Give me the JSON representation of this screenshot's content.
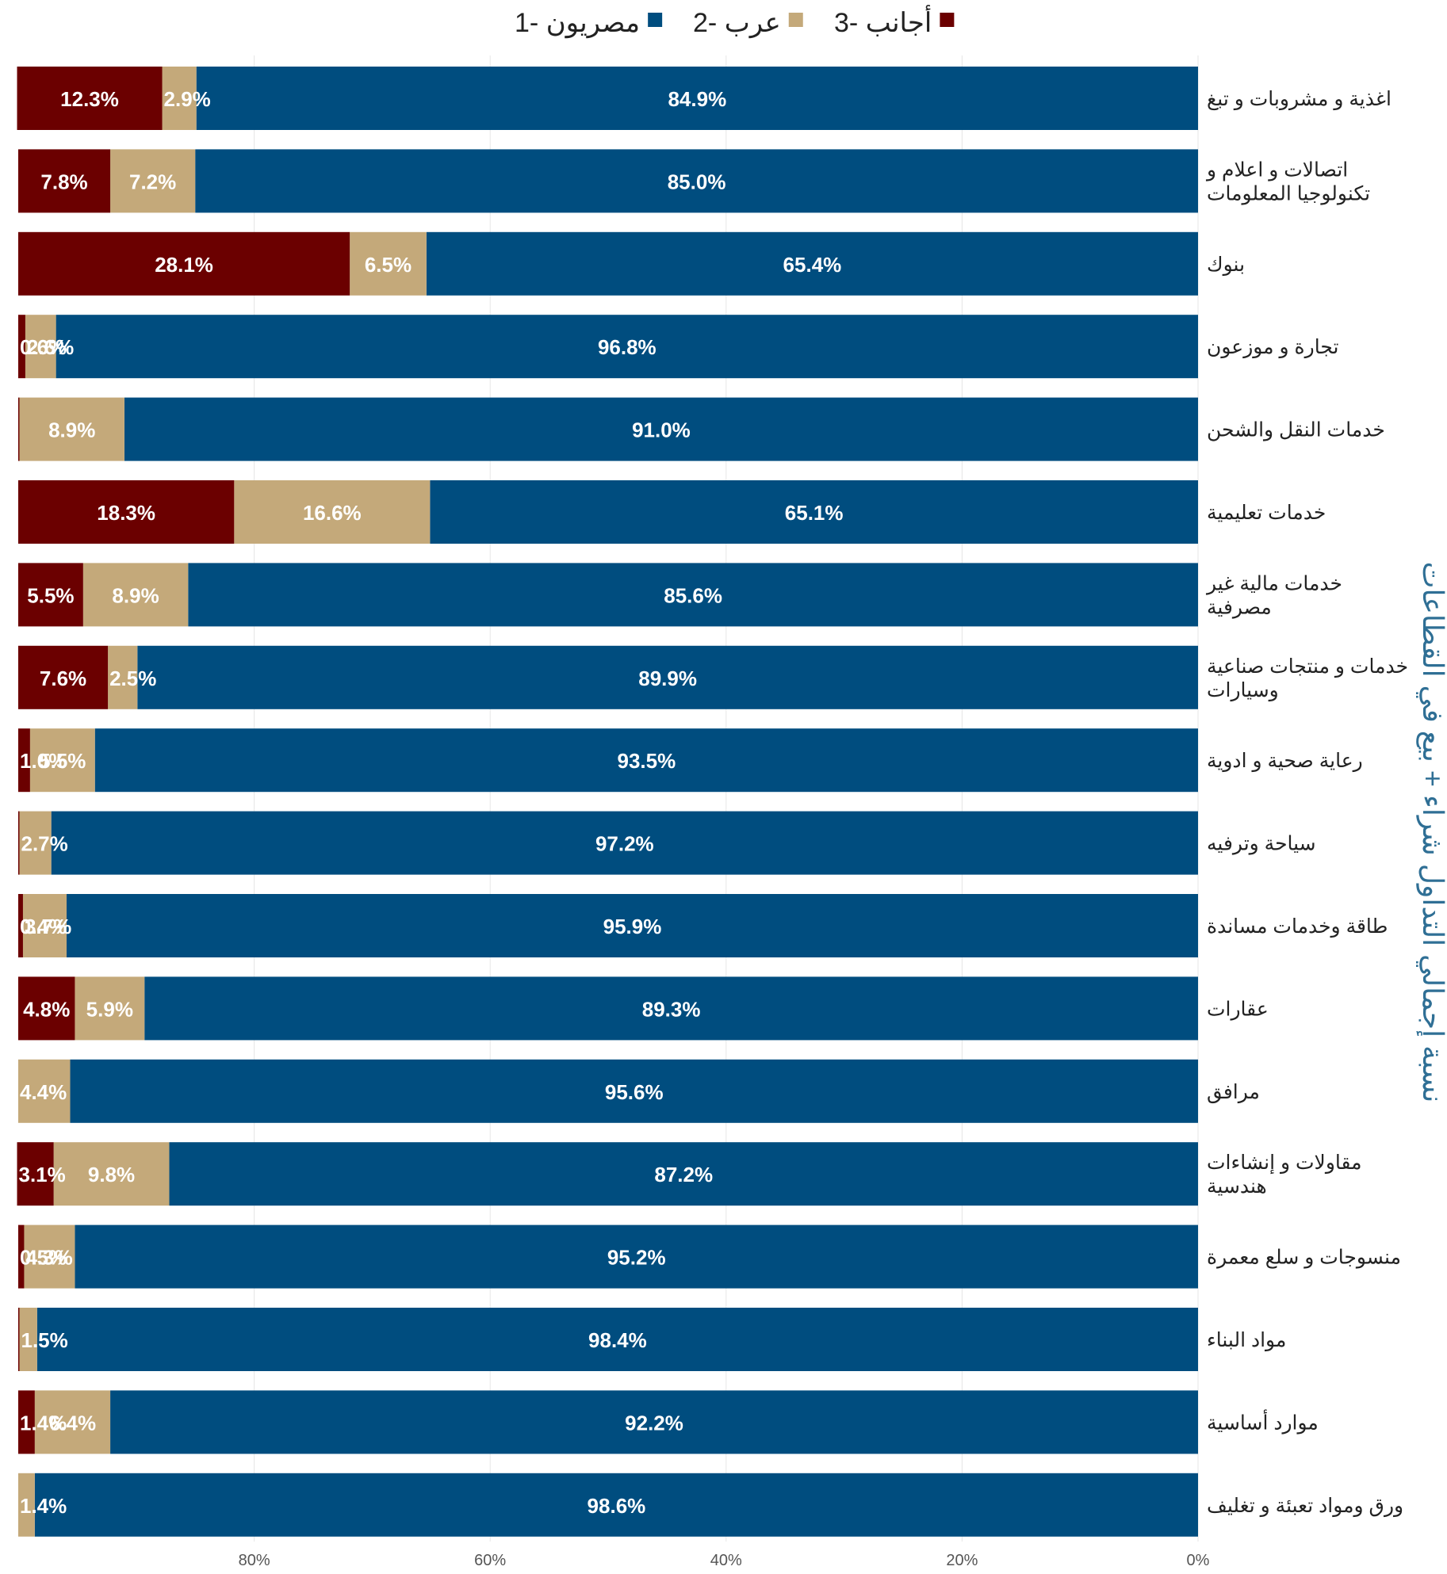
{
  "chart_data": {
    "type": "bar",
    "orientation": "horizontal",
    "stacked": true,
    "legend_position": "top",
    "grid": true,
    "ylabel": "نسبة إجمالي التداول شراء + بيع في القطاعات",
    "xlabel": "",
    "xlim": [
      0,
      100
    ],
    "x_direction": "reversed",
    "x_ticks": [
      {
        "value": 80,
        "label": "80%"
      },
      {
        "value": 60,
        "label": "60%"
      },
      {
        "value": 40,
        "label": "40%"
      },
      {
        "value": 20,
        "label": "20%"
      },
      {
        "value": 0,
        "label": "0%"
      }
    ],
    "categories": [
      [
        "اغذية و مشروبات و تبغ"
      ],
      [
        "اتصالات و اعلام و",
        "تكنولوجيا المعلومات"
      ],
      [
        "بنوك"
      ],
      [
        "تجارة و موزعون"
      ],
      [
        "خدمات النقل والشحن"
      ],
      [
        "خدمات تعليمية"
      ],
      [
        "خدمات مالية غير",
        "مصرفية"
      ],
      [
        "خدمات و منتجات صناعية",
        "وسيارات"
      ],
      [
        "رعاية صحية و ادوية"
      ],
      [
        "سياحة وترفيه"
      ],
      [
        "طاقة وخدمات مساندة"
      ],
      [
        "عقارات"
      ],
      [
        "مرافق"
      ],
      [
        "مقاولات و إنشاءات",
        "هندسية"
      ],
      [
        "منسوجات و سلع معمرة"
      ],
      [
        "مواد البناء"
      ],
      [
        "موارد أساسية"
      ],
      [
        "ورق ومواد تعبئة و تغليف"
      ]
    ],
    "series": [
      {
        "name": "مصريون -1",
        "color": "#004d7f",
        "values": [
          84.9,
          85.0,
          65.4,
          96.8,
          91.0,
          65.1,
          85.6,
          89.9,
          93.5,
          97.2,
          95.9,
          89.3,
          95.6,
          87.2,
          95.2,
          98.4,
          92.2,
          98.6
        ],
        "labels": [
          "84.9%",
          "85.0%",
          "65.4%",
          "96.8%",
          "91.0%",
          "65.1%",
          "85.6%",
          "89.9%",
          "93.5%",
          "97.2%",
          "95.9%",
          "89.3%",
          "95.6%",
          "87.2%",
          "95.2%",
          "98.4%",
          "92.2%",
          "98.6%"
        ]
      },
      {
        "name": "عرب -2",
        "color": "#c4a97a",
        "values": [
          2.9,
          7.2,
          6.5,
          2.6,
          8.9,
          16.6,
          8.9,
          2.5,
          5.5,
          2.7,
          3.7,
          5.9,
          4.4,
          9.8,
          4.3,
          1.5,
          6.4,
          1.4
        ],
        "labels": [
          "2.9%",
          "7.2%",
          "6.5%",
          "2.6%",
          "8.9%",
          "16.6%",
          "8.9%",
          "2.5%",
          "5.5%",
          "2.7%",
          "3.7%",
          "5.9%",
          "4.4%",
          "9.8%",
          "4.3%",
          "1.5%",
          "6.4%",
          "1.4%"
        ]
      },
      {
        "name": "أجانب -3",
        "color": "#6b0000",
        "values": [
          12.3,
          7.8,
          28.1,
          0.6,
          0.1,
          18.3,
          5.5,
          7.6,
          1.0,
          0.1,
          0.4,
          4.8,
          0.0,
          3.1,
          0.5,
          0.1,
          1.4,
          0.0
        ],
        "labels": [
          "12.3%",
          "7.8%",
          "28.1%",
          "0.6%",
          "0.1%",
          "18.3%",
          "5.5%",
          "7.6%",
          "1.0%",
          "0.1%",
          "0.4%",
          "4.8%",
          "0.0%",
          "3.1%",
          "0.5%",
          "0.1%",
          "1.4%",
          "0.0%"
        ]
      }
    ]
  }
}
